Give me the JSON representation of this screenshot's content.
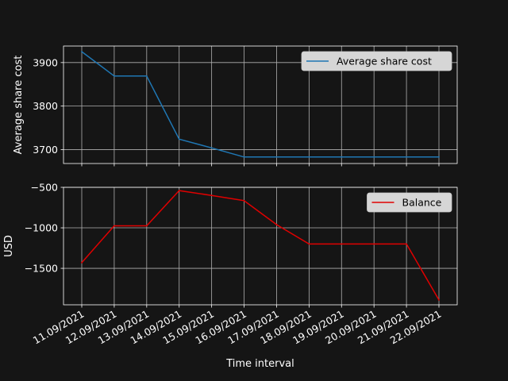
{
  "colors": {
    "background": "#151515",
    "axes": "#ffffff",
    "grid": "#b0b0b0"
  },
  "chart_data": [
    {
      "type": "line",
      "ylabel": "Average share cost",
      "ylim": [
        3668,
        3938
      ],
      "yticks": [
        3700,
        3800,
        3900
      ],
      "ytick_labels": [
        "3700",
        "3800",
        "3900"
      ],
      "grid": true,
      "legend_position": "upper right",
      "series": [
        {
          "name": "Average share cost",
          "color": "#1f77b4",
          "values": [
            3925,
            3869,
            3869,
            3724,
            3704,
            3683,
            3683,
            3683,
            3683,
            3683,
            3683,
            3683
          ]
        }
      ]
    },
    {
      "type": "line",
      "ylabel": "USD",
      "xlabel": "Time interval",
      "ylim": [
        -1950,
        -500
      ],
      "yticks": [
        -1500,
        -1000,
        -500
      ],
      "ytick_labels": [
        "−1500",
        "−1000",
        "−500"
      ],
      "grid": true,
      "legend_position": "upper right",
      "categories": [
        "11.09/2021",
        "12.09/2021",
        "13.09/2021",
        "14.09/2021",
        "15.09/2021",
        "16.09/2021",
        "17.09/2021",
        "18.09/2021",
        "19.09/2021",
        "20.09/2021",
        "21.09/2021",
        "22.09/2021"
      ],
      "series": [
        {
          "name": "Balance",
          "color": "#e00000",
          "values": [
            -1430,
            -975,
            -975,
            -540,
            -600,
            -665,
            -960,
            -1200,
            -1200,
            -1200,
            -1200,
            -1890
          ]
        }
      ]
    }
  ]
}
